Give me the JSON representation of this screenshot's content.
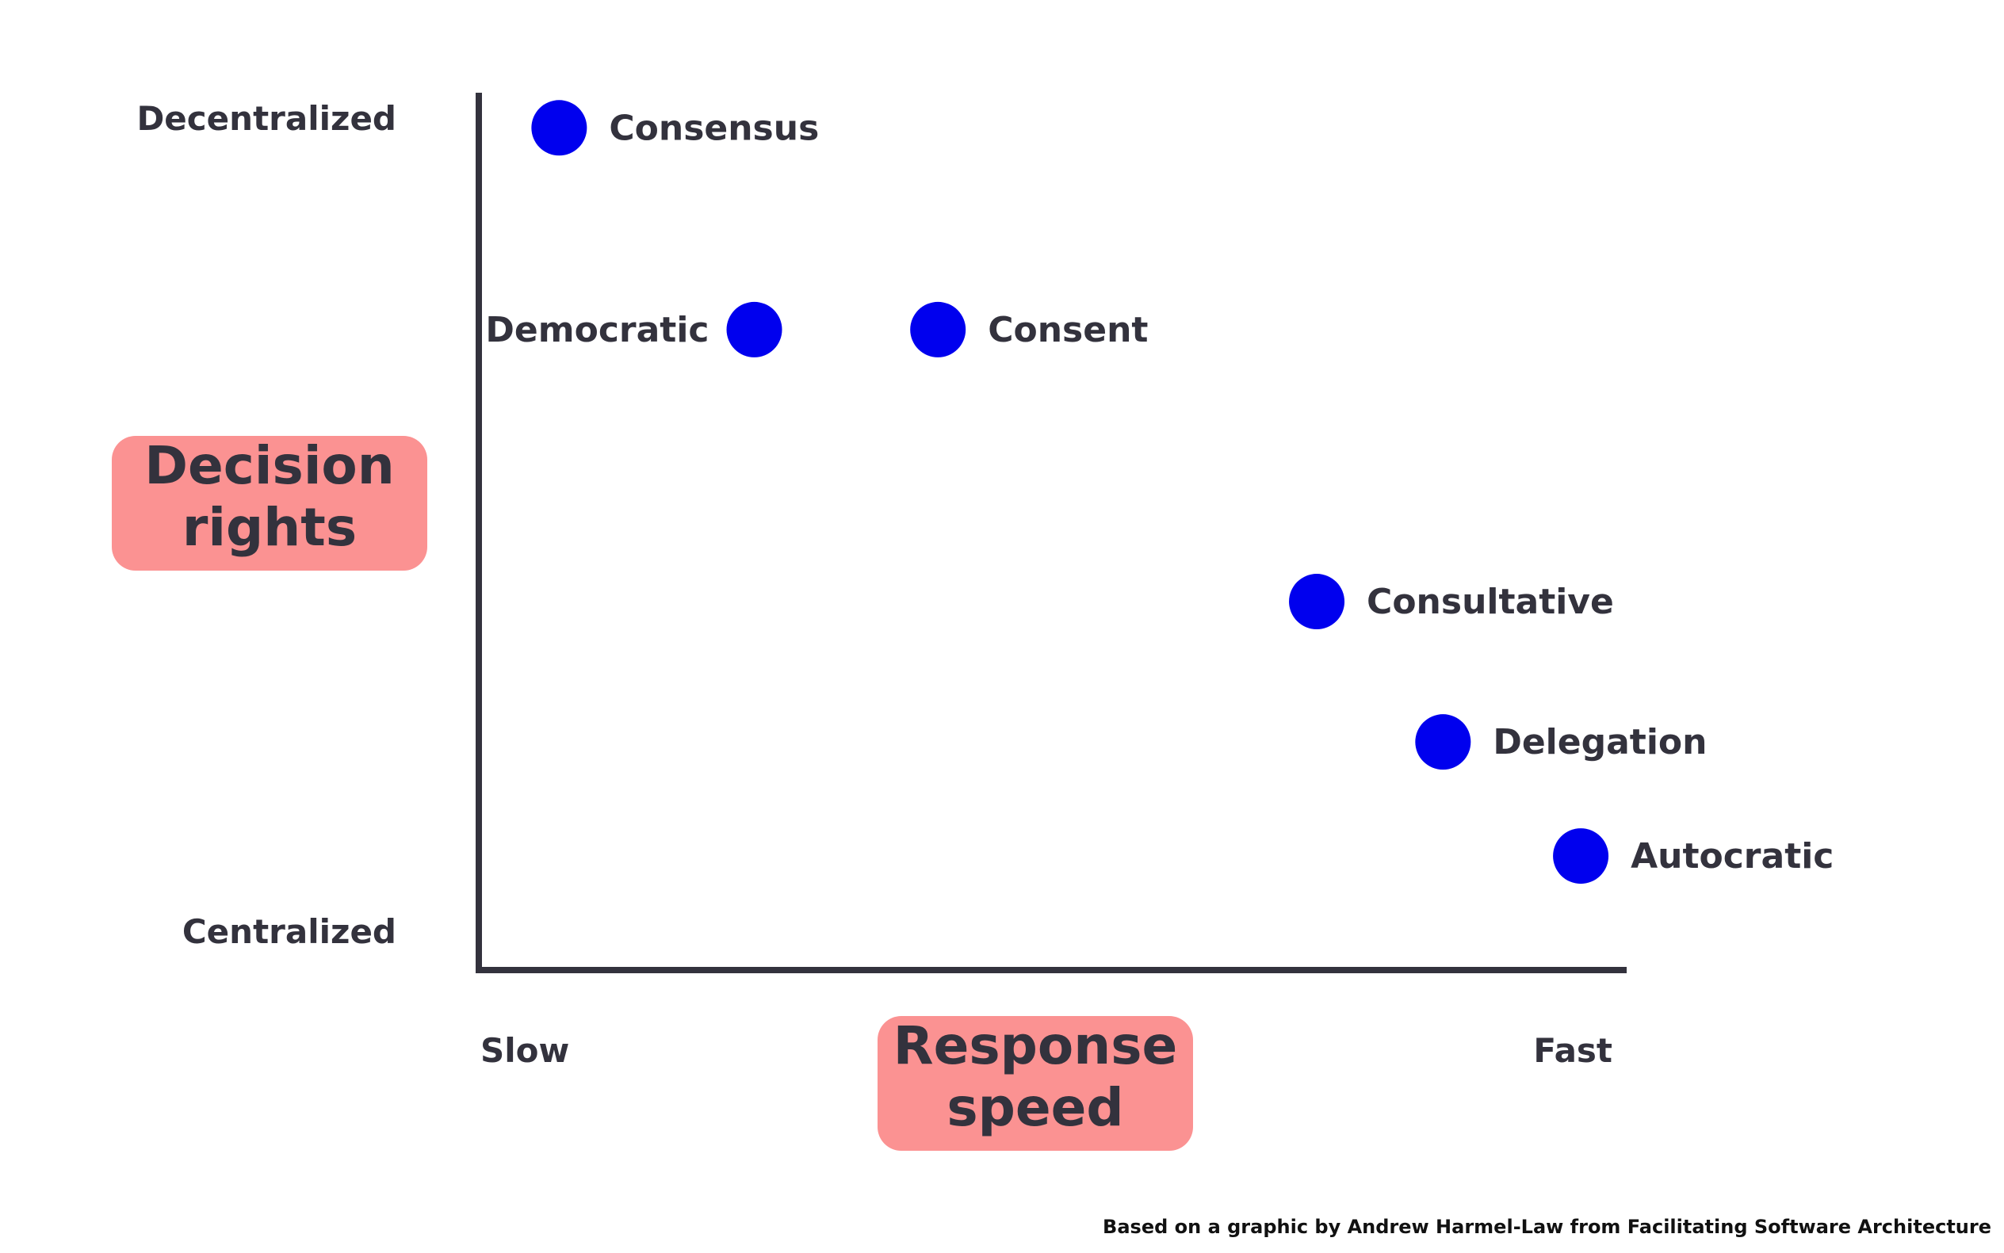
{
  "chart_data": {
    "type": "scatter",
    "title": "",
    "xlabel": "Response speed",
    "ylabel": "Decision rights",
    "x_axis": {
      "min_label": "Slow",
      "max_label": "Fast",
      "range": [
        0,
        10
      ]
    },
    "y_axis": {
      "min_label": "Centralized",
      "max_label": "Decentralized",
      "range": [
        0,
        10
      ]
    },
    "grid": false,
    "legend": "none",
    "point_color": "#0000ee",
    "axis_color": "#33323d",
    "label_box_color": "#fb9292",
    "points": [
      {
        "label": "Consensus",
        "x": 0.7,
        "y": 9.6,
        "label_side": "right"
      },
      {
        "label": "Democratic",
        "x": 2.4,
        "y": 7.3,
        "label_side": "left"
      },
      {
        "label": "Consent",
        "x": 4.0,
        "y": 7.3,
        "label_side": "right"
      },
      {
        "label": "Consultative",
        "x": 7.3,
        "y": 4.2,
        "label_side": "right"
      },
      {
        "label": "Delegation",
        "x": 8.4,
        "y": 2.6,
        "label_side": "right"
      },
      {
        "label": "Autocratic",
        "x": 9.6,
        "y": 1.3,
        "label_side": "right"
      }
    ],
    "footnote": "Based on a graphic by Andrew Harmel-Law from Facilitating Software Architecture"
  }
}
